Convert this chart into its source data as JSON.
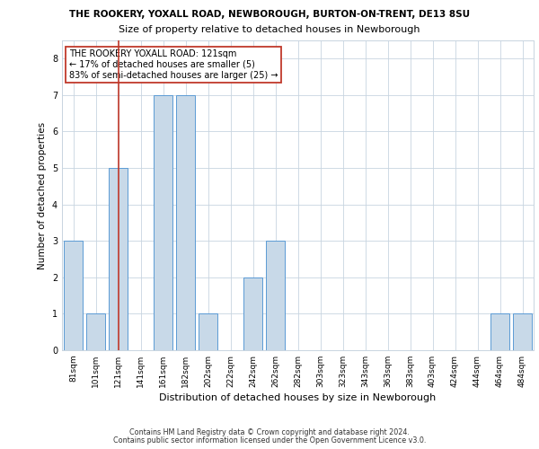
{
  "title_line1": "THE ROOKERY, YOXALL ROAD, NEWBOROUGH, BURTON-ON-TRENT, DE13 8SU",
  "title_line2": "Size of property relative to detached houses in Newborough",
  "xlabel": "Distribution of detached houses by size in Newborough",
  "ylabel": "Number of detached properties",
  "categories": [
    "81sqm",
    "101sqm",
    "121sqm",
    "141sqm",
    "161sqm",
    "182sqm",
    "202sqm",
    "222sqm",
    "242sqm",
    "262sqm",
    "282sqm",
    "303sqm",
    "323sqm",
    "343sqm",
    "363sqm",
    "383sqm",
    "403sqm",
    "424sqm",
    "444sqm",
    "464sqm",
    "484sqm"
  ],
  "values": [
    3,
    1,
    5,
    0,
    7,
    7,
    1,
    0,
    2,
    3,
    0,
    0,
    0,
    0,
    0,
    0,
    0,
    0,
    0,
    1,
    1
  ],
  "bar_color": "#c8d9e8",
  "bar_edge_color": "#5b9bd5",
  "highlight_index": 2,
  "highlight_line_color": "#c0392b",
  "annotation_line1": "THE ROOKERY YOXALL ROAD: 121sqm",
  "annotation_line2": "← 17% of detached houses are smaller (5)",
  "annotation_line3": "83% of semi-detached houses are larger (25) →",
  "annotation_box_color": "#ffffff",
  "annotation_box_edge": "#c0392b",
  "ylim": [
    0,
    8.5
  ],
  "yticks": [
    0,
    1,
    2,
    3,
    4,
    5,
    6,
    7,
    8
  ],
  "footer_line1": "Contains HM Land Registry data © Crown copyright and database right 2024.",
  "footer_line2": "Contains public sector information licensed under the Open Government Licence v3.0.",
  "bg_color": "#ffffff",
  "grid_color": "#c8d4e0",
  "title1_fontsize": 7.5,
  "title2_fontsize": 8,
  "ylabel_fontsize": 7.5,
  "xlabel_fontsize": 8,
  "tick_fontsize": 6.5,
  "annot_fontsize": 7,
  "footer_fontsize": 5.8
}
